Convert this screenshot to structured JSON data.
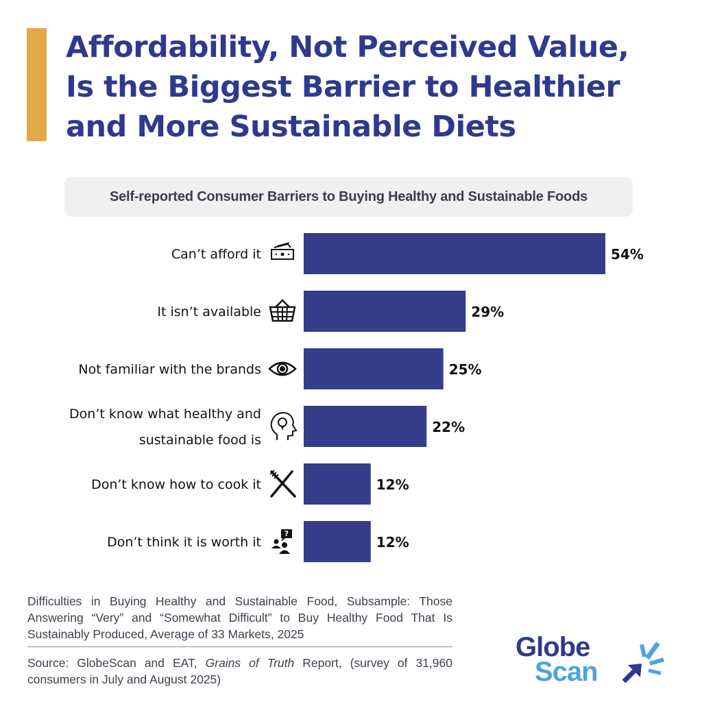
{
  "header": {
    "title_lines": [
      "Affordability, Not Perceived Value,",
      "Is the Biggest Barrier to Healthier",
      "and More Sustainable Diets"
    ],
    "accent_color": "#e3a948"
  },
  "chart_data": {
    "type": "bar",
    "orientation": "horizontal",
    "title": "Self-reported Consumer Barriers to Buying Healthy and Sustainable Foods",
    "categories": [
      {
        "label_lines": [
          "Can’t afford it"
        ],
        "icon": "money-bills-icon"
      },
      {
        "label_lines": [
          "It isn’t available"
        ],
        "icon": "shopping-basket-icon"
      },
      {
        "label_lines": [
          "Not familiar with the brands"
        ],
        "icon": "eye-icon"
      },
      {
        "label_lines": [
          "Don’t know what healthy and",
          "sustainable food is"
        ],
        "icon": "head-lightbulb-icon"
      },
      {
        "label_lines": [
          "Don’t know how to cook it"
        ],
        "icon": "fork-knife-icon"
      },
      {
        "label_lines": [
          "Don’t think it is worth it"
        ],
        "icon": "people-question-icon"
      }
    ],
    "values": [
      54,
      29,
      25,
      22,
      12,
      12
    ],
    "value_labels": [
      "54%",
      "29%",
      "25%",
      "22%",
      "12%",
      "12%"
    ],
    "unit": "%",
    "xlabel": "",
    "ylabel": "",
    "xlim": [
      0,
      54
    ],
    "grid": false,
    "legend": "none",
    "bar_color": "#333d8a"
  },
  "footer": {
    "notes": "Difficulties in Buying Healthy and Sustainable Food, Subsample: Those Answering “Very” and “Somewhat Difficult” to Buy Healthy Food That Is Sustainably Produced, Average of 33 Markets, 2025",
    "source_prefix": "Source: GlobeScan and EAT, ",
    "source_italic": "Grains of Truth",
    "source_suffix": " Report, (survey of 31,960 consumers in July and August 2025)"
  },
  "logo": {
    "line1": "Globe",
    "line2": "Scan",
    "color1": "#2e3a8c",
    "color2": "#4fa3dc"
  }
}
